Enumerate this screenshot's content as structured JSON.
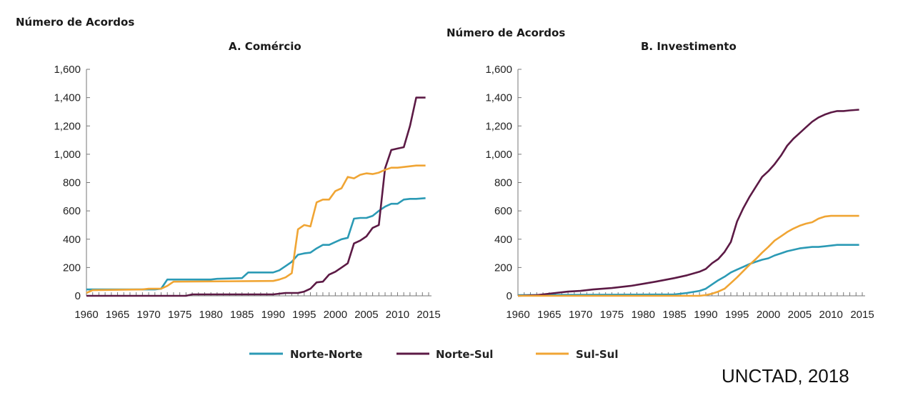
{
  "legend": [
    {
      "name": "Norte-Norte",
      "color": "#2b9ab5"
    },
    {
      "name": "Norte-Sul",
      "color": "#5c1a45"
    },
    {
      "name": "Sul-Sul",
      "color": "#f0a534"
    }
  ],
  "source": "UNCTAD, 2018",
  "chart_data": [
    {
      "type": "line",
      "title": "A. Comércio",
      "ylabel": "Número de Acordos",
      "xlabel": "",
      "xlim": [
        1960,
        2015
      ],
      "ylim": [
        0,
        1600
      ],
      "xticks": [
        "1960",
        "1965",
        "1970",
        "1975",
        "1980",
        "1985",
        "1990",
        "1995",
        "2000",
        "2005",
        "2010",
        "2015"
      ],
      "yticks": [
        "0",
        "200",
        "400",
        "600",
        "800",
        "1,000",
        "1,200",
        "1,400",
        "1,600"
      ],
      "grid": false,
      "series": [
        {
          "name": "Norte-Norte",
          "x": [
            1960,
            1971,
            1972,
            1973,
            1980,
            1981,
            1985,
            1986,
            1990,
            1991,
            1992,
            1993,
            1994,
            1995,
            1996,
            1997,
            1998,
            1999,
            2000,
            2001,
            2002,
            2003,
            2004,
            2005,
            2006,
            2007,
            2008,
            2009,
            2010,
            2011,
            2012,
            2013,
            2014.5
          ],
          "y": [
            45,
            45,
            50,
            115,
            115,
            120,
            125,
            165,
            165,
            180,
            210,
            240,
            290,
            300,
            305,
            335,
            360,
            360,
            380,
            400,
            410,
            545,
            550,
            550,
            565,
            600,
            630,
            650,
            650,
            680,
            685,
            685,
            690
          ]
        },
        {
          "name": "Norte-Sul",
          "x": [
            1960,
            1976,
            1977,
            1990,
            1991,
            1992,
            1994,
            1995,
            1996,
            1997,
            1998,
            1999,
            2000,
            2001,
            2002,
            2003,
            2004,
            2005,
            2006,
            2007,
            2008,
            2009,
            2010,
            2011,
            2012,
            2013,
            2014.5
          ],
          "y": [
            0,
            0,
            10,
            10,
            15,
            20,
            20,
            30,
            50,
            95,
            100,
            150,
            170,
            200,
            230,
            370,
            390,
            420,
            480,
            500,
            900,
            1030,
            1040,
            1050,
            1200,
            1400,
            1400
          ]
        },
        {
          "name": "Sul-Sul",
          "x": [
            1960,
            1961,
            1969,
            1970,
            1972,
            1973,
            1974,
            1990,
            1991,
            1992,
            1993,
            1994,
            1995,
            1996,
            1997,
            1998,
            1999,
            2000,
            2001,
            2002,
            2003,
            2004,
            2005,
            2006,
            2007,
            2008,
            2009,
            2010,
            2011,
            2012,
            2013,
            2014.5
          ],
          "y": [
            20,
            40,
            45,
            50,
            50,
            70,
            100,
            105,
            115,
            130,
            160,
            470,
            500,
            490,
            660,
            680,
            680,
            740,
            760,
            840,
            830,
            855,
            865,
            860,
            870,
            890,
            905,
            905,
            910,
            915,
            920,
            920
          ]
        }
      ]
    },
    {
      "type": "line",
      "title": "B. Investimento",
      "ylabel": "Número de Acordos",
      "xlabel": "",
      "xlim": [
        1960,
        2015
      ],
      "ylim": [
        0,
        1600
      ],
      "xticks": [
        "1960",
        "1965",
        "1970",
        "1975",
        "1980",
        "1985",
        "1990",
        "1995",
        "2000",
        "2005",
        "2010",
        "2015"
      ],
      "yticks": [
        "0",
        "200",
        "400",
        "600",
        "800",
        "1,000",
        "1,200",
        "1,400",
        "1,600"
      ],
      "grid": false,
      "series": [
        {
          "name": "Norte-Norte",
          "x": [
            1960,
            1985,
            1987,
            1989,
            1990,
            1991,
            1992,
            1993,
            1994,
            1995,
            1996,
            1997,
            1998,
            1999,
            2000,
            2001,
            2002,
            2003,
            2004,
            2005,
            2006,
            2007,
            2008,
            2009,
            2010,
            2011,
            2012,
            2013,
            2014.5
          ],
          "y": [
            5,
            10,
            20,
            35,
            50,
            80,
            110,
            135,
            165,
            185,
            205,
            225,
            240,
            255,
            265,
            285,
            300,
            315,
            325,
            335,
            340,
            345,
            345,
            350,
            355,
            360,
            360,
            360,
            360
          ]
        },
        {
          "name": "Norte-Sul",
          "x": [
            1960,
            1963,
            1965,
            1968,
            1970,
            1972,
            1975,
            1978,
            1980,
            1982,
            1985,
            1987,
            1989,
            1990,
            1991,
            1992,
            1993,
            1994,
            1995,
            1996,
            1997,
            1998,
            1999,
            2000,
            2001,
            2002,
            2003,
            2004,
            2005,
            2006,
            2007,
            2008,
            2009,
            2010,
            2011,
            2012,
            2013,
            2014.5
          ],
          "y": [
            0,
            5,
            15,
            30,
            35,
            45,
            55,
            70,
            85,
            100,
            125,
            145,
            170,
            190,
            230,
            260,
            310,
            380,
            525,
            620,
            700,
            770,
            840,
            880,
            930,
            990,
            1060,
            1110,
            1150,
            1190,
            1230,
            1260,
            1280,
            1295,
            1305,
            1305,
            1310,
            1315
          ]
        },
        {
          "name": "Sul-Sul",
          "x": [
            1960,
            1989,
            1990,
            1991,
            1992,
            1993,
            1994,
            1995,
            1996,
            1997,
            1998,
            1999,
            2000,
            2001,
            2002,
            2003,
            2004,
            2005,
            2006,
            2007,
            2008,
            2009,
            2010,
            2011,
            2014.5
          ],
          "y": [
            0,
            0,
            5,
            15,
            30,
            50,
            90,
            130,
            175,
            220,
            260,
            305,
            345,
            390,
            420,
            450,
            475,
            495,
            510,
            520,
            545,
            560,
            565,
            565,
            565
          ]
        }
      ]
    }
  ]
}
